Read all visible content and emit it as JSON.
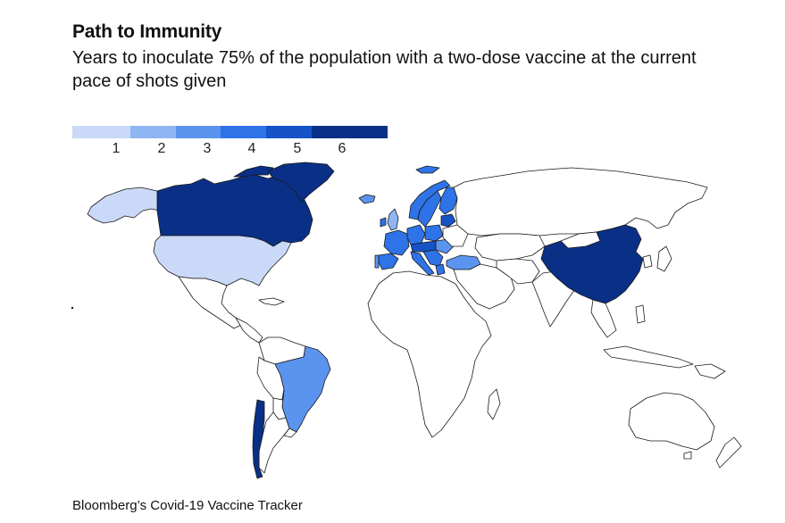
{
  "chart": {
    "title": "Path to Immunity",
    "subtitle": "Years to inoculate 75% of the population with a two-dose vaccine at the current pace of shots given",
    "source": "Bloomberg’s Covid-19 Vaccine Tracker"
  },
  "legend": {
    "ticks": [
      "1",
      "2",
      "3",
      "4",
      "5",
      "6"
    ],
    "colors": [
      "#c9d9f7",
      "#8fb5f3",
      "#5b94ef",
      "#2e73e8",
      "#1553c7",
      "#0a2f86"
    ]
  },
  "chart_data": {
    "type": "choropleth",
    "value_label": "Years to inoculate 75% of the population",
    "scale": [
      0,
      7
    ],
    "regions": [
      {
        "name": "United States",
        "value": 0.5
      },
      {
        "name": "Alaska",
        "value": 0.5
      },
      {
        "name": "Canada",
        "value": 6.5
      },
      {
        "name": "Greenland",
        "value": 6.5
      },
      {
        "name": "Brazil",
        "value": 3
      },
      {
        "name": "Chile",
        "value": 6.5
      },
      {
        "name": "China",
        "value": 6.5
      },
      {
        "name": "Iceland",
        "value": 3
      },
      {
        "name": "United Kingdom",
        "value": 2
      },
      {
        "name": "Norway",
        "value": 3.5
      },
      {
        "name": "Sweden",
        "value": 4
      },
      {
        "name": "Finland",
        "value": 4
      },
      {
        "name": "Russia (Murmansk)",
        "value": 3
      },
      {
        "name": "Ireland",
        "value": 4
      },
      {
        "name": "France",
        "value": 4
      },
      {
        "name": "Spain",
        "value": 4
      },
      {
        "name": "Portugal",
        "value": 3
      },
      {
        "name": "Germany",
        "value": 4
      },
      {
        "name": "Italy",
        "value": 4
      },
      {
        "name": "Poland",
        "value": 4
      },
      {
        "name": "Baltic states",
        "value": 5
      },
      {
        "name": "Austria/Czechia",
        "value": 5
      },
      {
        "name": "Romania",
        "value": 3
      },
      {
        "name": "Balkans",
        "value": 4
      },
      {
        "name": "Greece",
        "value": 4
      },
      {
        "name": "Turkey",
        "value": 3
      }
    ]
  }
}
